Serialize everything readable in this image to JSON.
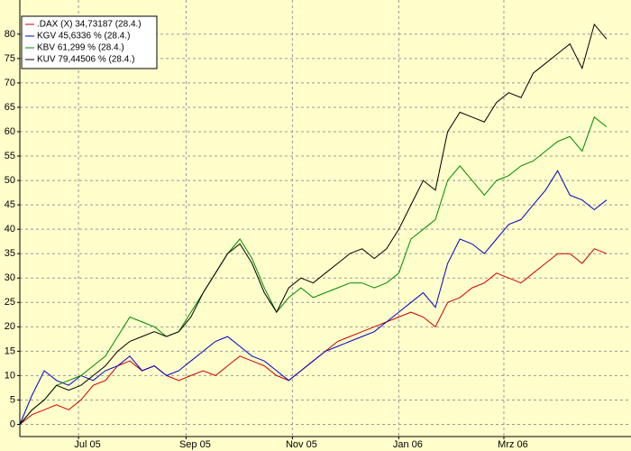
{
  "chart_data": {
    "type": "line",
    "x": [
      0,
      1,
      2,
      3,
      4,
      5,
      6,
      7,
      8,
      9,
      10,
      11,
      12,
      13,
      14,
      15,
      16,
      17,
      18,
      19,
      20,
      21,
      22,
      23,
      24,
      25,
      26,
      27,
      28,
      29,
      30,
      31,
      32,
      33,
      34,
      35,
      36,
      37,
      38,
      39,
      40,
      41,
      42,
      43,
      44,
      45,
      46,
      47,
      48
    ],
    "xlim": [
      0,
      50
    ],
    "xticks": [
      {
        "value": 4.8,
        "label": "Jul 05"
      },
      {
        "value": 13.6,
        "label": "Sep 05"
      },
      {
        "value": 22.3,
        "label": "Nov 05"
      },
      {
        "value": 31,
        "label": "Jan 06"
      },
      {
        "value": 39.6,
        "label": "Mrz 06"
      }
    ],
    "ylim": [
      -2.5,
      87
    ],
    "yticks": [
      0,
      5,
      10,
      15,
      20,
      25,
      30,
      35,
      40,
      45,
      50,
      55,
      60,
      65,
      70,
      75,
      80
    ],
    "grid": true,
    "legend": "upper left",
    "series": [
      {
        "name": ".DAX (X) 34,73187 (28.4.)",
        "color": "#cc0000",
        "values": [
          0,
          2,
          3,
          4,
          3,
          5,
          8,
          9,
          12,
          13,
          11,
          12,
          10,
          9,
          10,
          11,
          10,
          12,
          14,
          13,
          12,
          10,
          9,
          11,
          13,
          15,
          17,
          18,
          19,
          20,
          21,
          22,
          23,
          22,
          20,
          25,
          26,
          28,
          29,
          31,
          30,
          29,
          31,
          33,
          35,
          35,
          33,
          36,
          35
        ]
      },
      {
        "name": "KGV 45,6336 % (28.4.)",
        "color": "#0000cc",
        "values": [
          0,
          6,
          11,
          9,
          8,
          10,
          9,
          11,
          12,
          14,
          11,
          12,
          10,
          11,
          13,
          15,
          17,
          18,
          16,
          14,
          13,
          11,
          9,
          11,
          13,
          15,
          16,
          17,
          18,
          19,
          21,
          23,
          25,
          27,
          24,
          33,
          38,
          37,
          35,
          38,
          41,
          42,
          45,
          48,
          52,
          47,
          46,
          44,
          46
        ]
      },
      {
        "name": "KBV 61,299 % (28.4.)",
        "color": "#008800",
        "values": [
          0,
          3,
          5,
          8,
          9,
          10,
          12,
          14,
          18,
          22,
          21,
          20,
          18,
          19,
          23,
          27,
          31,
          35,
          38,
          34,
          28,
          23,
          26,
          28,
          26,
          27,
          28,
          29,
          29,
          28,
          29,
          31,
          38,
          40,
          42,
          50,
          53,
          50,
          47,
          50,
          51,
          53,
          54,
          56,
          58,
          59,
          56,
          63,
          61
        ]
      },
      {
        "name": "KUV 79,44506 % (28.4.)",
        "color": "#000000",
        "values": [
          0,
          3,
          5,
          8,
          7,
          8,
          10,
          12,
          15,
          17,
          18,
          19,
          18,
          19,
          22,
          27,
          31,
          35,
          37,
          33,
          27,
          23,
          28,
          30,
          29,
          31,
          33,
          35,
          36,
          34,
          36,
          40,
          45,
          50,
          48,
          60,
          64,
          63,
          62,
          66,
          68,
          67,
          72,
          74,
          76,
          78,
          73,
          82,
          79
        ]
      }
    ]
  }
}
